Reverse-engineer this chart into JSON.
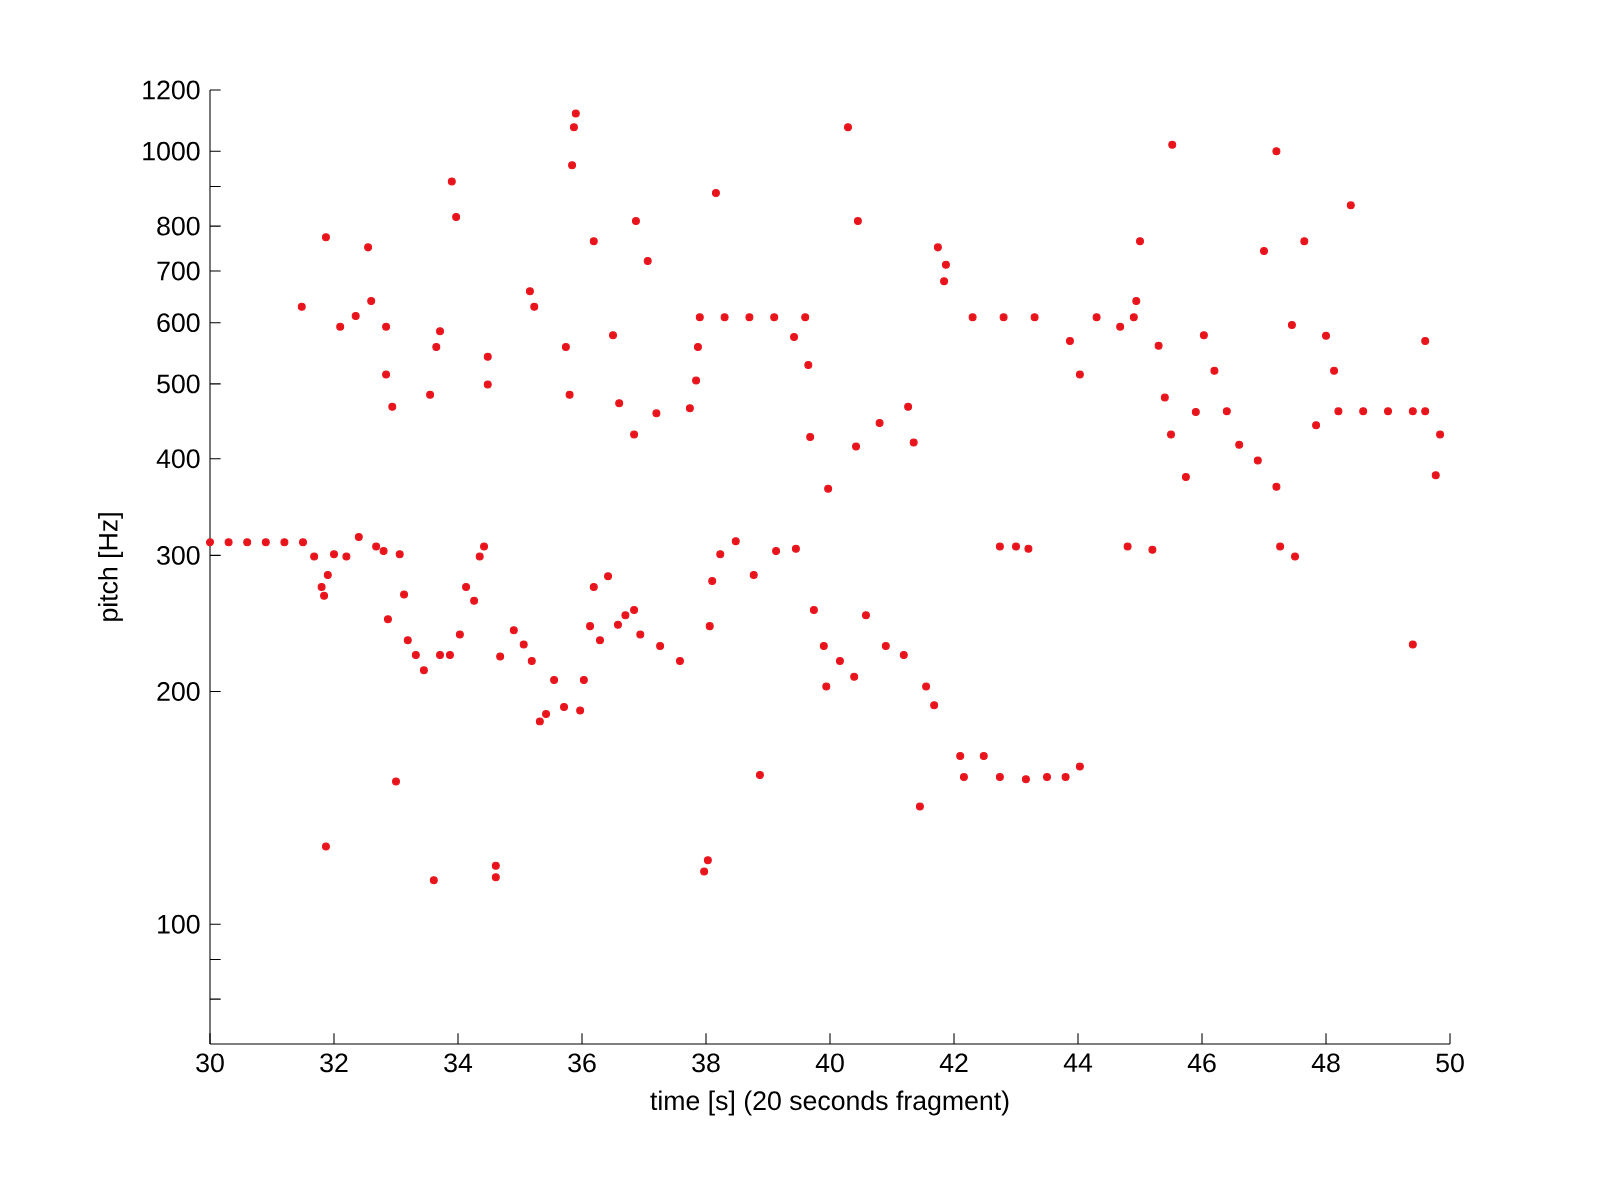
{
  "chart_data": {
    "type": "scatter",
    "xlabel": "time [s] (20 seconds fragment)",
    "ylabel": "pitch [Hz]",
    "color": "#e8141c",
    "marker": "circle",
    "log": "y",
    "xlim": [
      30,
      50
    ],
    "ylim": [
      70,
      1200
    ],
    "xticks": [
      30,
      32,
      34,
      36,
      38,
      40,
      42,
      44,
      46,
      48,
      50
    ],
    "yticks": [
      {
        "value": 80,
        "label": null
      },
      {
        "value": 90,
        "label": null
      },
      100,
      200,
      300,
      400,
      500,
      600,
      700,
      800,
      {
        "value": 900,
        "label": null
      },
      1000,
      1200
    ],
    "x": [
      30.0,
      30.3,
      30.6,
      30.9,
      31.2,
      31.5,
      31.68,
      31.8,
      31.84,
      31.9,
      32.0,
      32.2,
      32.4,
      32.68,
      32.8,
      32.87,
      33.06,
      33.13,
      33.19,
      33.32,
      33.45,
      33.71,
      33.87,
      34.03,
      34.13,
      34.26,
      34.35,
      34.42,
      34.68,
      34.9,
      35.06,
      35.19,
      35.32,
      35.42,
      35.55,
      35.71,
      35.97,
      36.03,
      36.13,
      36.19,
      36.29,
      36.42,
      36.58,
      36.7,
      36.84,
      36.94,
      37.26,
      37.58,
      38.06,
      38.1,
      38.23,
      38.48,
      38.77,
      39.13,
      39.45,
      39.74,
      39.9,
      39.94,
      40.16,
      40.39,
      40.58,
      40.9,
      41.19,
      41.55,
      41.68,
      42.1,
      42.16,
      42.48,
      42.74,
      43.16,
      43.5,
      43.8,
      44.03,
      42.74,
      43.0,
      43.2,
      44.8,
      45.2,
      47.26,
      47.5,
      49.4,
      31.87,
      33.0,
      33.61,
      34.61,
      34.61,
      37.97,
      38.03,
      38.87,
      41.45,
      31.48,
      31.87,
      32.1,
      32.35,
      32.55,
      32.6,
      32.84,
      32.84,
      32.94,
      33.55,
      33.65,
      33.71,
      33.9,
      33.97,
      34.48,
      34.48,
      35.16,
      35.23,
      35.74,
      35.8,
      35.84,
      35.87,
      35.9,
      36.19,
      36.5,
      36.6,
      36.84,
      36.87,
      37.06,
      37.2,
      37.74,
      37.84,
      37.87,
      37.9,
      38.16,
      38.3,
      38.7,
      39.1,
      39.42,
      39.6,
      39.65,
      39.68,
      39.97,
      40.29,
      40.42,
      40.45,
      40.8,
      41.26,
      41.35,
      41.74,
      41.84,
      41.87,
      42.3,
      42.8,
      43.3,
      43.87,
      44.03,
      44.3,
      44.68,
      44.9,
      44.94,
      45.0,
      45.52,
      45.3,
      45.4,
      45.5,
      45.74,
      45.9,
      46.03,
      46.2,
      46.4,
      46.6,
      46.9,
      47.0,
      47.2,
      47.2,
      47.45,
      47.65,
      47.84,
      48.0,
      48.13,
      48.2,
      48.6,
      49.0,
      49.4,
      49.6,
      49.6,
      49.77,
      49.84,
      48.4
    ],
    "values": [
      312,
      312,
      312,
      312,
      312,
      312,
      299,
      273,
      266,
      283,
      301,
      299,
      317,
      308,
      304,
      248,
      301,
      267,
      233,
      223,
      213,
      223,
      223,
      237,
      273,
      262,
      299,
      308,
      222,
      240,
      230,
      219,
      183,
      187,
      207,
      191,
      189,
      207,
      243,
      273,
      233,
      282,
      244,
      251,
      255,
      237,
      229,
      219,
      243,
      278,
      301,
      313,
      283,
      304,
      306,
      255,
      229,
      203,
      219,
      209,
      251,
      229,
      223,
      203,
      192,
      165,
      155,
      165,
      155,
      154,
      155,
      155,
      160,
      308,
      308,
      306,
      308,
      305,
      308,
      299,
      230,
      126,
      153,
      114,
      115,
      119,
      117,
      121,
      156,
      142,
      629,
      774,
      593,
      612,
      751,
      640,
      593,
      514,
      467,
      484,
      558,
      585,
      914,
      822,
      542,
      499,
      659,
      629,
      558,
      484,
      959,
      1074,
      1119,
      765,
      578,
      472,
      430,
      812,
      721,
      458,
      465,
      505,
      558,
      610,
      883,
      610,
      610,
      610,
      575,
      610,
      529,
      427,
      366,
      1074,
      415,
      812,
      445,
      467,
      420,
      751,
      679,
      713,
      610,
      610,
      610,
      568,
      514,
      610,
      593,
      610,
      640,
      765,
      1019,
      560,
      480,
      430,
      379,
      460,
      578,
      520,
      461,
      417,
      398,
      743,
      368,
      1000,
      596,
      765,
      442,
      577,
      520,
      461,
      461,
      461,
      461,
      461,
      568,
      381,
      430,
      851
    ]
  }
}
